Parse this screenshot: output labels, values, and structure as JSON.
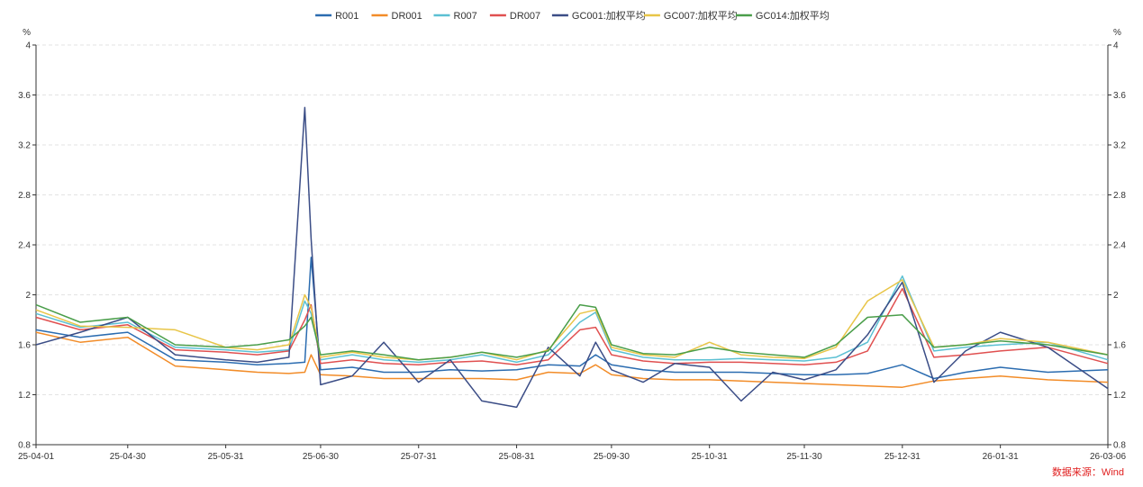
{
  "chart_data": {
    "type": "line",
    "source_note": "数据来源：Wind",
    "y_unit_left": "%",
    "y_unit_right": "%",
    "ylim": [
      0.8,
      4
    ],
    "yticks": [
      "0.8",
      "1.2",
      "1.6",
      "2",
      "2.4",
      "2.8",
      "3.2",
      "3.6",
      "4"
    ],
    "xticks": [
      "25-04-01",
      "25-04-30",
      "25-05-31",
      "25-06-30",
      "25-07-31",
      "25-08-31",
      "25-09-30",
      "25-10-31",
      "25-11-30",
      "25-12-31",
      "26-01-31",
      "26-03-06"
    ],
    "grid": "horizontal-dashed",
    "legend_position": "top-center",
    "x": [
      "25-04-01",
      "25-04-15",
      "25-04-30",
      "25-05-15",
      "25-05-31",
      "25-06-10",
      "25-06-20",
      "25-06-25",
      "25-06-27",
      "25-06-30",
      "25-07-10",
      "25-07-20",
      "25-07-31",
      "25-08-10",
      "25-08-20",
      "25-08-31",
      "25-09-10",
      "25-09-20",
      "25-09-25",
      "25-09-30",
      "25-10-10",
      "25-10-20",
      "25-10-31",
      "25-11-10",
      "25-11-20",
      "25-11-30",
      "25-12-10",
      "25-12-20",
      "25-12-31",
      "26-01-10",
      "26-01-20",
      "26-01-31",
      "26-02-15",
      "26-03-06"
    ],
    "series": [
      {
        "name": "R001",
        "color": "#2b6cb0",
        "values": [
          1.72,
          1.66,
          1.7,
          1.48,
          1.46,
          1.44,
          1.45,
          1.46,
          2.3,
          1.4,
          1.42,
          1.38,
          1.38,
          1.4,
          1.39,
          1.4,
          1.44,
          1.43,
          1.52,
          1.44,
          1.4,
          1.38,
          1.38,
          1.38,
          1.37,
          1.36,
          1.36,
          1.37,
          1.44,
          1.33,
          1.38,
          1.42,
          1.38,
          1.4
        ]
      },
      {
        "name": "DR001",
        "color": "#f28c28",
        "values": [
          1.7,
          1.62,
          1.66,
          1.43,
          1.4,
          1.38,
          1.37,
          1.38,
          1.52,
          1.36,
          1.35,
          1.33,
          1.33,
          1.33,
          1.33,
          1.32,
          1.38,
          1.37,
          1.44,
          1.36,
          1.33,
          1.32,
          1.32,
          1.31,
          1.3,
          1.29,
          1.28,
          1.27,
          1.26,
          1.31,
          1.33,
          1.35,
          1.32,
          1.3
        ]
      },
      {
        "name": "R007",
        "color": "#5bc0d3",
        "values": [
          1.85,
          1.74,
          1.78,
          1.58,
          1.56,
          1.54,
          1.56,
          1.95,
          1.85,
          1.48,
          1.52,
          1.48,
          1.46,
          1.48,
          1.52,
          1.46,
          1.52,
          1.78,
          1.86,
          1.56,
          1.5,
          1.48,
          1.48,
          1.49,
          1.48,
          1.47,
          1.5,
          1.62,
          2.15,
          1.55,
          1.58,
          1.6,
          1.62,
          1.48
        ]
      },
      {
        "name": "DR007",
        "color": "#e05050",
        "values": [
          1.82,
          1.72,
          1.76,
          1.56,
          1.54,
          1.52,
          1.55,
          1.8,
          1.92,
          1.45,
          1.48,
          1.45,
          1.44,
          1.46,
          1.47,
          1.44,
          1.48,
          1.72,
          1.74,
          1.52,
          1.47,
          1.45,
          1.46,
          1.46,
          1.45,
          1.44,
          1.46,
          1.55,
          2.05,
          1.5,
          1.52,
          1.55,
          1.58,
          1.45
        ]
      },
      {
        "name": "GC001:加权平均",
        "color": "#3b4d86",
        "values": [
          1.6,
          1.7,
          1.82,
          1.52,
          1.48,
          1.46,
          1.5,
          3.5,
          2.45,
          1.28,
          1.35,
          1.62,
          1.3,
          1.48,
          1.15,
          1.1,
          1.58,
          1.35,
          1.62,
          1.4,
          1.3,
          1.45,
          1.42,
          1.15,
          1.38,
          1.32,
          1.4,
          1.68,
          2.1,
          1.3,
          1.55,
          1.7,
          1.58,
          1.25
        ]
      },
      {
        "name": "GC007:加权平均",
        "color": "#e8c547",
        "values": [
          1.88,
          1.75,
          1.74,
          1.72,
          1.58,
          1.56,
          1.6,
          2.0,
          1.9,
          1.5,
          1.54,
          1.5,
          1.48,
          1.5,
          1.54,
          1.48,
          1.56,
          1.85,
          1.88,
          1.58,
          1.52,
          1.5,
          1.62,
          1.52,
          1.5,
          1.49,
          1.58,
          1.95,
          2.12,
          1.58,
          1.6,
          1.65,
          1.62,
          1.52
        ]
      },
      {
        "name": "GC014:加权平均",
        "color": "#4a9e4a",
        "values": [
          1.92,
          1.78,
          1.82,
          1.6,
          1.58,
          1.6,
          1.64,
          1.75,
          1.82,
          1.52,
          1.55,
          1.52,
          1.48,
          1.5,
          1.54,
          1.5,
          1.55,
          1.92,
          1.9,
          1.6,
          1.53,
          1.52,
          1.58,
          1.54,
          1.52,
          1.5,
          1.6,
          1.82,
          1.84,
          1.58,
          1.6,
          1.63,
          1.6,
          1.52
        ]
      }
    ]
  }
}
